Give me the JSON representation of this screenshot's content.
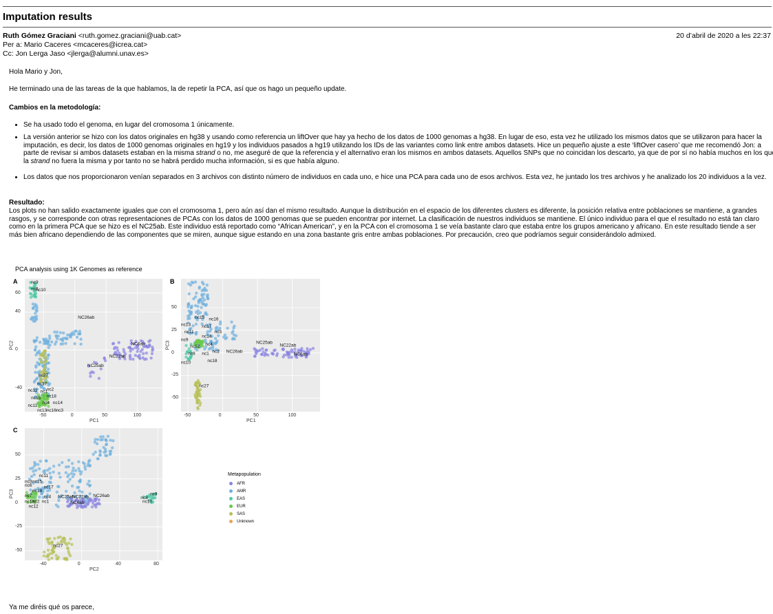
{
  "subject": "Imputation results",
  "from": "Ruth Gómez Graciani <ruth.gomez.graciani@uab.cat>",
  "date": "20 d’abril de 2020 a les 22:37",
  "to": "Per a: Mario Caceres <mcaceres@icrea.cat>",
  "cc": "Cc: Jon Lerga Jaso <jlerga@alumni.unav.es>",
  "greeting": "Hola Mario y Jon,",
  "intro": "He terminado una de las tareas de la que hablamos, la de repetir la PCA, así que os hago un pequeño update.",
  "methods_heading": "Cambios en la metodología:",
  "bullets": {
    "b1": "Se ha usado todo el genoma, en lugar del cromosoma 1 únicamente.",
    "b2a": "La versión anterior se hizo con los datos originales en hg38 y usando como referencia un liftOver que hay ya hecho de los datos de 1000 genomas a hg38. En lugar de eso, esta vez he utilizado los mismos datos que se utilizaron para hacer la imputación, es decir, los datos de 1000 genomas originales en hg19 y los individuos pasados a hg19 utilizando los IDs de las variantes como link entre ambos datasets. Hice un pequeño ajuste a este ‘liftOver casero’ que me recomendó Jon: a parte de revisar si ambos datasets estaban en la misma ",
    "b2b": "strand",
    "b2c": " o no, me aseguré de que la referencia y el alternativo eran los mismos en ambos datasets. Aquellos SNPs que no coincidan los descarto, ya que de por sí no había muchos en los que la ",
    "b2d": "strand",
    "b2e": " no fuera la misma y por tanto no se habrá perdido mucha información, si es que había alguno.",
    "b3": "Los datos que nos proporcionaron venían separados en 3 archivos con distinto número de individuos en cada uno, e hice una PCA para cada uno de esos archivos. Esta vez, he juntado los tres archivos y he analizado los 20 individuos a la vez."
  },
  "result_heading": "Resultado:",
  "result_text": "Los plots no han salido exactamente iguales que con el cromosoma 1, pero aún así dan el mismo resultado. Aunque la distribución en el espacio de los diferentes clusters es diferente, la posición relativa entre poblaciones se mantiene, a grandes rasgos, y se corresponde con otras representaciones de PCAs con los datos de 1000 genomas que se pueden encontrar por internet. La clasificación de nuestros individuos se mantiene. El único individuo para el que el resultado no está tan claro como en la primera PCA que se hizo es el NC25ab. Este individuo está reportado como “African American”, y en la PCA con el cromosoma 1 se veía bastante claro que estaba entre los grupos americano y africano. En este resultado tiende a ser más bien africano dependiendo de las componentes que se miren, aunque sigue estando en una zona bastante gris entre ambas poblaciones. Por precaución, creo que podríamos seguir considerándolo admixed.",
  "closing": "Ya me diréis qué os parece,",
  "colors": {
    "AFR": "#8a84e0",
    "AMR": "#6fb0de",
    "EAS": "#4dc9a6",
    "EUR": "#69c94a",
    "SAS": "#b7bf55",
    "Unknown": "#e8a35a"
  },
  "figure": {
    "title": "PCA analysis using 1K Genomes as reference",
    "legend": {
      "title": "Metapopulation",
      "entries": [
        "AFR",
        "AMR",
        "EAS",
        "EUR",
        "SAS",
        "Unknown"
      ]
    },
    "panels": [
      {
        "id": "A",
        "xlabel": "PC1",
        "ylabel": "PC2",
        "xlim": [
          -80,
          140
        ],
        "ylim": [
          -65,
          75
        ],
        "xticks": [
          -50,
          0,
          50,
          100
        ],
        "yticks": [
          -40,
          0,
          40,
          60
        ],
        "clusters": [
          {
            "pop": "AMR",
            "x": [
              -65,
              -40
            ],
            "y": [
              -50,
              15
            ],
            "n": 110
          },
          {
            "pop": "AMR",
            "x": [
              -40,
              10
            ],
            "y": [
              5,
              20
            ],
            "n": 40
          },
          {
            "pop": "AMR",
            "x": [
              -70,
              -60
            ],
            "y": [
              30,
              50
            ],
            "n": 20
          },
          {
            "pop": "EAS",
            "x": [
              -72,
              -62
            ],
            "y": [
              55,
              72
            ],
            "n": 24
          },
          {
            "pop": "SAS",
            "x": [
              -55,
              -45
            ],
            "y": [
              -35,
              0
            ],
            "n": 40
          },
          {
            "pop": "EUR",
            "x": [
              -60,
              -42
            ],
            "y": [
              -60,
              -45
            ],
            "n": 45
          },
          {
            "pop": "AFR",
            "x": [
              60,
              125
            ],
            "y": [
              -10,
              10
            ],
            "n": 70
          },
          {
            "pop": "AFR",
            "x": [
              20,
              60
            ],
            "y": [
              -30,
              -5
            ],
            "n": 12
          }
        ],
        "labels": [
          {
            "t": "nc9",
            "x": -70,
            "y": 70
          },
          {
            "t": "nc6",
            "x": -70,
            "y": 63
          },
          {
            "t": "nc10",
            "x": -62,
            "y": 62
          },
          {
            "t": "NC26ab",
            "x": 5,
            "y": 33
          },
          {
            "t": "NC6ab",
            "x": 90,
            "y": 5
          },
          {
            "t": "NC22ab",
            "x": 55,
            "y": -8
          },
          {
            "t": "NC25ab",
            "x": 20,
            "y": -18
          },
          {
            "t": "nc27",
            "x": -58,
            "y": -28
          },
          {
            "t": "nc17",
            "x": -60,
            "y": -37
          },
          {
            "t": "nc12",
            "x": -75,
            "y": -44
          },
          {
            "t": "nc1",
            "x": -55,
            "y": -45
          },
          {
            "t": "nc2",
            "x": -45,
            "y": -43
          },
          {
            "t": "nc18",
            "x": -45,
            "y": -50
          },
          {
            "t": "nc15",
            "x": -70,
            "y": -52
          },
          {
            "t": "nc4",
            "x": -52,
            "y": -57
          },
          {
            "t": "nc14",
            "x": -35,
            "y": -57
          },
          {
            "t": "nc11",
            "x": -75,
            "y": -60
          },
          {
            "t": "nc13",
            "x": -60,
            "y": -65
          },
          {
            "t": "nc16",
            "x": -45,
            "y": -65
          },
          {
            "t": "nc3",
            "x": -30,
            "y": -65
          }
        ]
      },
      {
        "id": "B",
        "xlabel": "PC1",
        "ylabel": "PC3",
        "xlim": [
          -60,
          140
        ],
        "ylim": [
          -65,
          82
        ],
        "xticks": [
          -50,
          0,
          50,
          100
        ],
        "yticks": [
          -50,
          -25,
          0,
          25,
          50
        ],
        "clusters": [
          {
            "pop": "AMR",
            "x": [
              -50,
              -20
            ],
            "y": [
              20,
              80
            ],
            "n": 90
          },
          {
            "pop": "AMR",
            "x": [
              -20,
              20
            ],
            "y": [
              15,
              35
            ],
            "n": 30
          },
          {
            "pop": "AMR",
            "x": [
              -40,
              -5
            ],
            "y": [
              2,
              15
            ],
            "n": 30
          },
          {
            "pop": "EUR",
            "x": [
              -40,
              -28
            ],
            "y": [
              6,
              14
            ],
            "n": 30
          },
          {
            "pop": "EAS",
            "x": [
              -53,
              -45
            ],
            "y": [
              -8,
              10
            ],
            "n": 18
          },
          {
            "pop": "SAS",
            "x": [
              -40,
              -32
            ],
            "y": [
              -62,
              -30
            ],
            "n": 40
          },
          {
            "pop": "AFR",
            "x": [
              45,
              130
            ],
            "y": [
              -5,
              5
            ],
            "n": 70
          }
        ],
        "labels": [
          {
            "t": "nc15",
            "x": -40,
            "y": 38
          },
          {
            "t": "nc16",
            "x": -20,
            "y": 36
          },
          {
            "t": "nc13",
            "x": -60,
            "y": 30
          },
          {
            "t": "nc17",
            "x": -30,
            "y": 28
          },
          {
            "t": "nc11",
            "x": -55,
            "y": 22
          },
          {
            "t": "nc3",
            "x": -12,
            "y": 22
          },
          {
            "t": "nc14",
            "x": -30,
            "y": 17
          },
          {
            "t": "nc9",
            "x": -60,
            "y": 13
          },
          {
            "t": "nc4",
            "x": -25,
            "y": 8
          },
          {
            "t": "nc12",
            "x": -47,
            "y": 6
          },
          {
            "t": "nc2",
            "x": -15,
            "y": 0
          },
          {
            "t": "nc8",
            "x": -50,
            "y": -2
          },
          {
            "t": "nc1",
            "x": -30,
            "y": -2
          },
          {
            "t": "nc18",
            "x": -22,
            "y": -10
          },
          {
            "t": "nc10",
            "x": -60,
            "y": -12
          },
          {
            "t": "NC26ab",
            "x": 5,
            "y": 0
          },
          {
            "t": "NC25ab",
            "x": 48,
            "y": 10
          },
          {
            "t": "NC22ab",
            "x": 82,
            "y": 7
          },
          {
            "t": "NC6ab",
            "x": 102,
            "y": -3
          },
          {
            "t": "nc27",
            "x": -34,
            "y": -38
          }
        ]
      },
      {
        "id": "C",
        "xlabel": "PC2",
        "ylabel": "PC3",
        "xlim": [
          -60,
          85
        ],
        "ylim": [
          -60,
          78
        ],
        "xticks": [
          -40,
          0,
          40,
          80
        ],
        "yticks": [
          -50,
          -25,
          0,
          25,
          50
        ],
        "clusters": [
          {
            "pop": "AMR",
            "x": [
              -55,
              10
            ],
            "y": [
              5,
              45
            ],
            "n": 110
          },
          {
            "pop": "AMR",
            "x": [
              10,
              35
            ],
            "y": [
              45,
              70
            ],
            "n": 35
          },
          {
            "pop": "AMR",
            "x": [
              -30,
              10
            ],
            "y": [
              -5,
              8
            ],
            "n": 25
          },
          {
            "pop": "EUR",
            "x": [
              -58,
              -48
            ],
            "y": [
              0,
              12
            ],
            "n": 25
          },
          {
            "pop": "AFR",
            "x": [
              -15,
              20
            ],
            "y": [
              -5,
              5
            ],
            "n": 55
          },
          {
            "pop": "EAS",
            "x": [
              65,
              78
            ],
            "y": [
              0,
              10
            ],
            "n": 18
          },
          {
            "pop": "SAS",
            "x": [
              -40,
              -10
            ],
            "y": [
              -60,
              -35
            ],
            "n": 55
          }
        ],
        "labels": [
          {
            "t": "nc11",
            "x": -45,
            "y": 27
          },
          {
            "t": "nc3",
            "x": -60,
            "y": 21
          },
          {
            "t": "nc15",
            "x": -52,
            "y": 21
          },
          {
            "t": "nc6",
            "x": -60,
            "y": 17
          },
          {
            "t": "nc17",
            "x": -40,
            "y": 15
          },
          {
            "t": "nc18",
            "x": -52,
            "y": 11
          },
          {
            "t": "nc7",
            "x": -60,
            "y": 6
          },
          {
            "t": "nc4",
            "x": -40,
            "y": 5
          },
          {
            "t": "NC25ab",
            "x": -25,
            "y": 5
          },
          {
            "t": "NC22ab",
            "x": -10,
            "y": 5
          },
          {
            "t": "NC26ab",
            "x": 12,
            "y": 6
          },
          {
            "t": "nc13",
            "x": -60,
            "y": 0
          },
          {
            "t": "nc2",
            "x": -52,
            "y": 0
          },
          {
            "t": "nc1",
            "x": -42,
            "y": 0
          },
          {
            "t": "NC6ab",
            "x": -12,
            "y": -1
          },
          {
            "t": "nc12",
            "x": -56,
            "y": -5
          },
          {
            "t": "nc9",
            "x": 72,
            "y": 8
          },
          {
            "t": "nc8",
            "x": 62,
            "y": 4
          },
          {
            "t": "nc10",
            "x": 64,
            "y": 0
          },
          {
            "t": "nc27",
            "x": -30,
            "y": -46
          }
        ]
      }
    ]
  }
}
